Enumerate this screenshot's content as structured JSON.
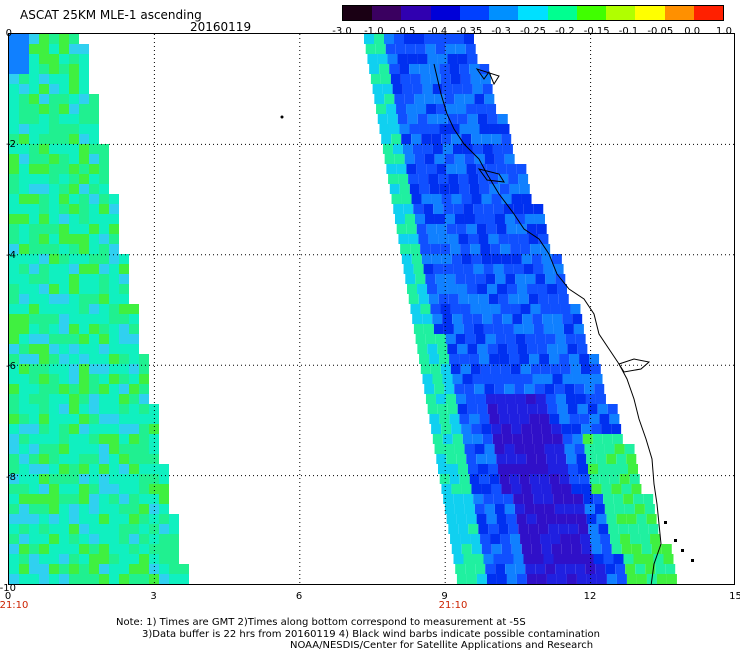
{
  "header": {
    "title": "ASCAT 25KM MLE-1 ascending",
    "date": "20160119"
  },
  "colorbar": {
    "labels": [
      "-3.0",
      "-1.0",
      "-0.5",
      "-0.4",
      "-0.35",
      "-0.3",
      "-0.25",
      "-0.2",
      "-0.15",
      "-0.1",
      "-0.05",
      "0.0",
      "1.0"
    ],
    "colors": [
      "#1a0014",
      "#3a0060",
      "#3000b0",
      "#0000d8",
      "#0040ff",
      "#0090ff",
      "#00e0ff",
      "#00ff90",
      "#40ff00",
      "#b0ff00",
      "#ffff00",
      "#ff9000",
      "#ff2000"
    ]
  },
  "axes": {
    "y_labels": [
      "0",
      "-2",
      "-4",
      "-6",
      "-8",
      "-10"
    ],
    "x_labels": [
      "0",
      "3",
      "6",
      "9",
      "12",
      "15"
    ],
    "time_labels": [
      "21:10",
      "21:10"
    ]
  },
  "footer": {
    "note1": "Note: 1) Times are GMT 2)Times along bottom correspond to measurement at -5S",
    "note2": "3)Data buffer is 22 hrs from 20160119 4) Black wind barbs indicate possible contamination",
    "note3": "NOAA/NESDIS/Center for Satellite Applications and Research"
  }
}
